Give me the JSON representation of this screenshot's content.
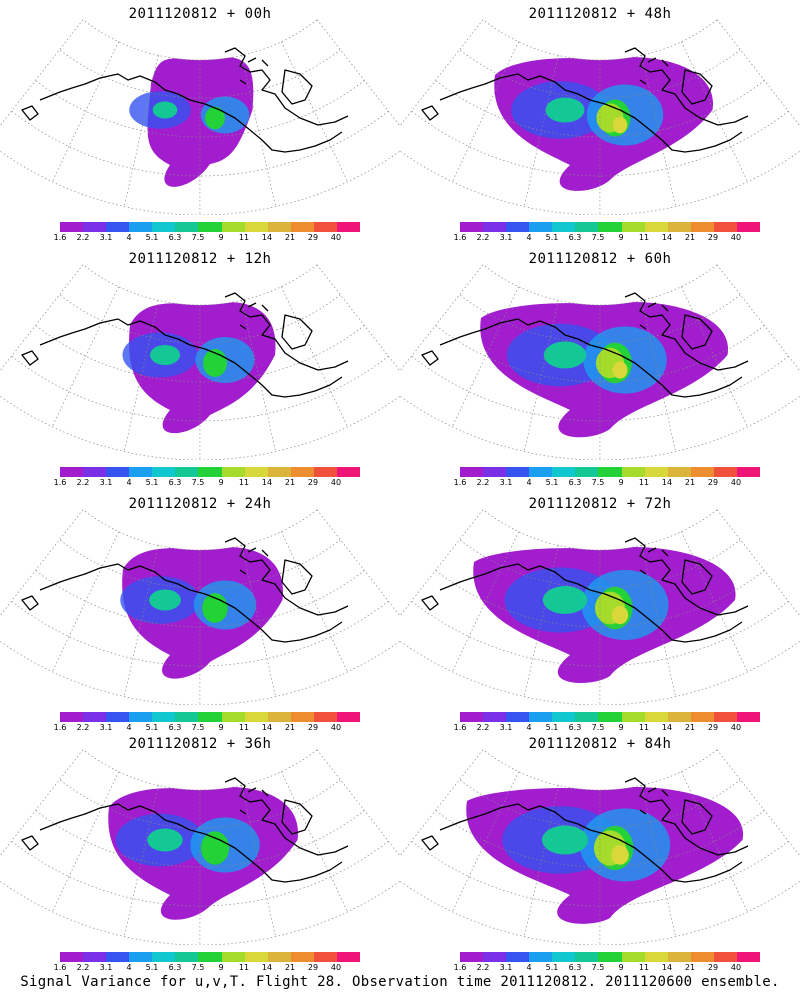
{
  "footer_title": "Signal Variance for u,v,T. Flight 28. Observation time 2011120812. 2011120600 ensemble.",
  "colorbar": {
    "labels": [
      "1.6",
      "2.2",
      "3.1",
      "4",
      "5.1",
      "6.3",
      "7.5",
      "9",
      "11",
      "14",
      "21",
      "29",
      "40"
    ],
    "colors": [
      "#a21dcd",
      "#7a30e6",
      "#3554f0",
      "#1a9ef0",
      "#12c8d0",
      "#14c896",
      "#22d236",
      "#a5dc2c",
      "#d8d83a",
      "#dcb43c",
      "#ee8c30",
      "#f0503c",
      "#ee1478"
    ]
  },
  "panels": [
    {
      "title": "2011120812 + 00h",
      "intensity": 0.25,
      "spread": 0.35
    },
    {
      "title": "2011120812 + 48h",
      "intensity": 0.55,
      "spread": 0.75
    },
    {
      "title": "2011120812 + 12h",
      "intensity": 0.4,
      "spread": 0.5
    },
    {
      "title": "2011120812 + 60h",
      "intensity": 0.6,
      "spread": 0.85
    },
    {
      "title": "2011120812 + 24h",
      "intensity": 0.45,
      "spread": 0.55
    },
    {
      "title": "2011120812 + 72h",
      "intensity": 0.7,
      "spread": 0.9
    },
    {
      "title": "2011120812 + 36h",
      "intensity": 0.5,
      "spread": 0.65
    },
    {
      "title": "2011120812 + 84h",
      "intensity": 0.8,
      "spread": 0.95
    }
  ]
}
